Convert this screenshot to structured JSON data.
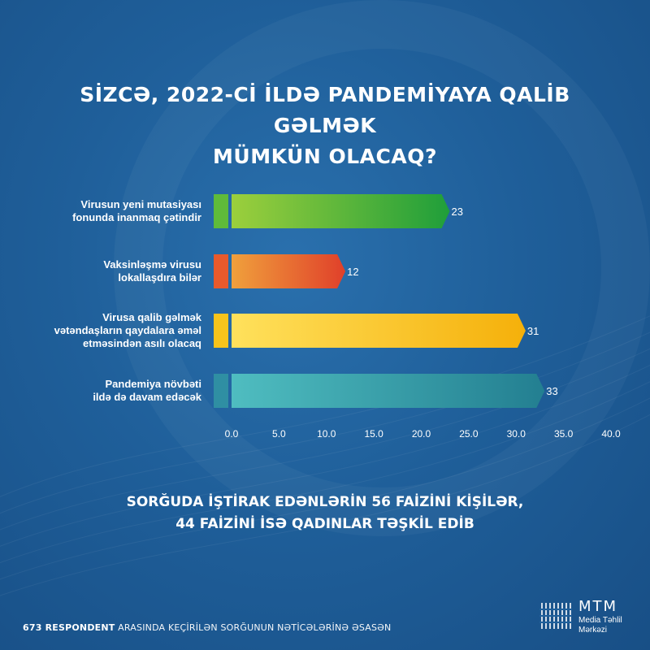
{
  "title": {
    "line1": "SİZCƏ, 2022-Cİ İLDƏ PANDEMİYAYA QALİB GƏLMƏK",
    "line2": "MÜMKÜN OLACAQ?"
  },
  "chart_data": {
    "type": "bar",
    "orientation": "horizontal",
    "categories": [
      "Virusun yeni mutasiyası fonunda inanmaq çətindir",
      "Vaksinləşmə virusu lokallaşdıra bilər",
      "Virusa qalib gəlmək vətəndaşların qaydalara əməl etməsindən asılı olacaq",
      "Pandemiya növbəti ildə də davam edəcək"
    ],
    "category_lines": [
      [
        "Virusun yeni mutasiyası",
        "fonunda inanmaq çətindir"
      ],
      [
        "Vaksinləşmə virusu",
        "lokallaşdıra bilər"
      ],
      [
        "Virusa qalib gəlmək",
        "vətəndaşların qaydalara əməl",
        "etməsindən asılı olacaq"
      ],
      [
        "Pandemiya növbəti",
        "ildə də davam edəcək"
      ]
    ],
    "values": [
      23,
      12,
      31,
      33
    ],
    "value_labels": [
      "23",
      "12",
      "31",
      "33"
    ],
    "xlim": [
      0,
      40
    ],
    "x_ticks": [
      0,
      5,
      10,
      15,
      20,
      25,
      30,
      35,
      40
    ],
    "x_tick_labels": [
      "0.0",
      "5.0",
      "10.0",
      "15.0",
      "20.0",
      "25.0",
      "30.0",
      "35.0",
      "40.0"
    ],
    "grid": false,
    "colors": [
      {
        "start": "#9ccf3c",
        "end": "#1f9e3a",
        "cap": "#5fbb3a"
      },
      {
        "start": "#f0a03c",
        "end": "#e0402a",
        "cap": "#e85a2c"
      },
      {
        "start": "#ffe15c",
        "end": "#f5b00a",
        "cap": "#f7c41c"
      },
      {
        "start": "#4fbdc0",
        "end": "#237f91",
        "cap": "#2f8fa3"
      }
    ]
  },
  "footnote": {
    "line1": "SORĞUDA İŞTİRAK EDƏNLƏRİN 56 FAİZİNİ KİŞİLƏR,",
    "line2": "44 FAİZİNİ İSƏ QADINLAR TƏŞKİL EDİB"
  },
  "source": {
    "bold": "673 RESPONDENT",
    "rest": " ARASINDA KEÇİRİLƏN SORĞUNUN NƏTİCƏLƏRİNƏ ƏSASƏN"
  },
  "logo": {
    "name": "MTM",
    "sub_line1": "Media Təhlil",
    "sub_line2": "Mərkəzi"
  },
  "colors": {
    "background": "#1f5f9a",
    "text": "#ffffff"
  }
}
